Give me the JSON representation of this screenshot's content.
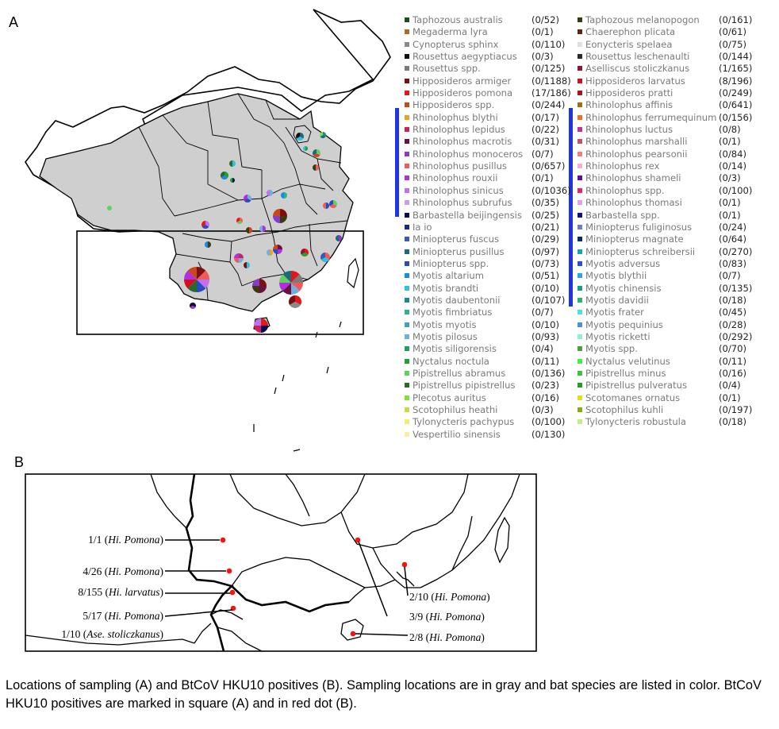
{
  "panel_a_label": "A",
  "panel_b_label": "B",
  "caption": "Locations of sampling (A) and BtCoV HKU10 positives (B). Sampling locations are in gray and bat species are listed in color. BtCoV HKU10 positives are marked in square (A) and in red dot (B).",
  "legend": {
    "left": [
      {
        "name": "Taphozous australis",
        "count": "(0/52)",
        "color": "#1e4d1e"
      },
      {
        "name": "Megaderma lyra",
        "count": "(0/1)",
        "color": "#b06a2a"
      },
      {
        "name": "Cynopterus sphinx",
        "count": "(0/110)",
        "color": "#8a8a8a"
      },
      {
        "name": "Rousettus aegyptiacus",
        "count": "(0/3)",
        "color": "#111111"
      },
      {
        "name": "Rousettus spp.",
        "count": "(0/125)",
        "color": "#7a7a7a"
      },
      {
        "name": "Hipposideros armiger",
        "count": "(0/1188)",
        "color": "#7a1010"
      },
      {
        "name": "Hipposideros pomona",
        "count": "(17/186)",
        "color": "#e01818"
      },
      {
        "name": "Hipposideros spp.",
        "count": "(0/244)",
        "color": "#c8481a"
      },
      {
        "name": "Rhinolophus blythi",
        "count": "(0/17)",
        "color": "#f0a020"
      },
      {
        "name": "Rhinolophus lepidus",
        "count": "(0/22)",
        "color": "#d0205a"
      },
      {
        "name": "Rhinolophus macrotis",
        "count": "(0/31)",
        "color": "#6a1040"
      },
      {
        "name": "Rhinolophus monoceros",
        "count": "(0/7)",
        "color": "#8a3acb"
      },
      {
        "name": "Rhinolophus pusillus",
        "count": "(0/657)",
        "color": "#f05a5a"
      },
      {
        "name": "Rhinolophus rouxii",
        "count": "(0/1)",
        "color": "#b030e0"
      },
      {
        "name": "Rhinolophus sinicus",
        "count": "(0/1036)",
        "color": "#c070f0"
      },
      {
        "name": "Rhinolophus subrufus",
        "count": "(0/35)",
        "color": "#c8a0e0"
      },
      {
        "name": "Barbastella beijingensis",
        "count": "(0/25)",
        "color": "#0a0a5a"
      },
      {
        "name": "Ia io",
        "count": "(0/21)",
        "color": "#1a2a8a"
      },
      {
        "name": "Miniopterus fuscus",
        "count": "(0/29)",
        "color": "#3a5ab0"
      },
      {
        "name": "Miniopterus pusillus",
        "count": "(0/97)",
        "color": "#1a6a7a"
      },
      {
        "name": "Miniopterus spp.",
        "count": "(0/73)",
        "color": "#2a4ac0"
      },
      {
        "name": "Myotis altarium",
        "count": "(0/51)",
        "color": "#1a8ae0"
      },
      {
        "name": "Myotis brandti",
        "count": "(0/10)",
        "color": "#30c0e0"
      },
      {
        "name": "Myotis daubentonii",
        "count": "(0/107)",
        "color": "#1a8a8a"
      },
      {
        "name": "Myotis fimbriatus",
        "count": "(0/7)",
        "color": "#30b090"
      },
      {
        "name": "Myotis myotis",
        "count": "(0/10)",
        "color": "#40a0c0"
      },
      {
        "name": "Myotis pilosus",
        "count": "(0/93)",
        "color": "#70b0e0"
      },
      {
        "name": "Myotis siligorensis",
        "count": "(0/4)",
        "color": "#20a060"
      },
      {
        "name": "Nyctalus noctula",
        "count": "(0/11)",
        "color": "#20a030"
      },
      {
        "name": "Pipistrellus abramus",
        "count": "(0/136)",
        "color": "#60d060"
      },
      {
        "name": "Pipistrellus pipistrellus",
        "count": "(0/23)",
        "color": "#2a6a2a"
      },
      {
        "name": "Plecotus auritus",
        "count": "(0/16)",
        "color": "#80e040"
      },
      {
        "name": "Scotophilus heathi",
        "count": "(0/3)",
        "color": "#c0e040"
      },
      {
        "name": "Tylonycteris pachypus",
        "count": "(0/100)",
        "color": "#f0f070"
      },
      {
        "name": "Vespertilio sinensis",
        "count": "(0/130)",
        "color": "#f8f0a0"
      }
    ],
    "right": [
      {
        "name": "Taphozous melanopogon",
        "count": "(0/161)",
        "color": "#3a3a10"
      },
      {
        "name": "Chaerephon plicata",
        "count": "(0/61)",
        "color": "#5a2a10"
      },
      {
        "name": "Eonycteris spelaea",
        "count": "(0/75)",
        "color": "#e0e0e0"
      },
      {
        "name": "Rousettus leschenaulti",
        "count": "(0/144)",
        "color": "#2a2a2a"
      },
      {
        "name": "Aselliscus stoliczkanus",
        "count": "(1/165)",
        "color": "#9a1030"
      },
      {
        "name": "Hipposideros larvatus",
        "count": "(8/196)",
        "color": "#d01020"
      },
      {
        "name": "Hipposideros pratti",
        "count": "(0/249)",
        "color": "#a01818"
      },
      {
        "name": "Rhinolophus affinis",
        "count": "(0/641)",
        "color": "#a07010"
      },
      {
        "name": "Rhinolophus ferrumequinum",
        "count": "(0/156)",
        "color": "#f07020"
      },
      {
        "name": "Rhinolophus luctus",
        "count": "(0/8)",
        "color": "#c030a0"
      },
      {
        "name": "Rhinolophus marshalli",
        "count": "(0/1)",
        "color": "#c05070"
      },
      {
        "name": "Rhinolophus pearsonii",
        "count": "(0/84)",
        "color": "#f08080"
      },
      {
        "name": "Rhinolophus rex",
        "count": "(0/14)",
        "color": "#f0b0d0"
      },
      {
        "name": "Rhinolophus shameli",
        "count": "(0/3)",
        "color": "#5a10a0"
      },
      {
        "name": "Rhinolophus spp.",
        "count": "(0/100)",
        "color": "#f02060"
      },
      {
        "name": "Rhinolophus thomasi",
        "count": "(0/1)",
        "color": "#e0a0f0"
      },
      {
        "name": "Barbastella spp.",
        "count": "(0/1)",
        "color": "#101080"
      },
      {
        "name": "Miniopterus fuliginosus",
        "count": "(0/24)",
        "color": "#6a80c0"
      },
      {
        "name": "Miniopterus magnate",
        "count": "(0/64)",
        "color": "#0a2a6a"
      },
      {
        "name": "Miniopterus schreibersii",
        "count": "(0/270)",
        "color": "#1aa0c0"
      },
      {
        "name": "Myotis adversus",
        "count": "(0/83)",
        "color": "#2a4ae0"
      },
      {
        "name": "Myotis blythii",
        "count": "(0/7)",
        "color": "#30a0f0"
      },
      {
        "name": "Myotis chinensis",
        "count": "(0/135)",
        "color": "#1a9a8a"
      },
      {
        "name": "Myotis davidii",
        "count": "(0/18)",
        "color": "#30b070"
      },
      {
        "name": "Myotis frater",
        "count": "(0/45)",
        "color": "#50e0e0"
      },
      {
        "name": "Myotis pequinius",
        "count": "(0/28)",
        "color": "#4a90e0"
      },
      {
        "name": "Myotis ricketti",
        "count": "(0/292)",
        "color": "#90f0d0"
      },
      {
        "name": "Myotis spp.",
        "count": "(0/70)",
        "color": "#4aa040"
      },
      {
        "name": "Nyctalus velutinus",
        "count": "(0/11)",
        "color": "#40f040"
      },
      {
        "name": "Pipistrellus minus",
        "count": "(0/16)",
        "color": "#40c040"
      },
      {
        "name": "Pipistrellus pulveratus",
        "count": "(0/4)",
        "color": "#20a020"
      },
      {
        "name": "Scotomanes ornatus",
        "count": "(0/1)",
        "color": "#e0e020"
      },
      {
        "name": "Scotophilus kuhli",
        "count": "(0/197)",
        "color": "#80b010"
      },
      {
        "name": "Tylonycteris robustula",
        "count": "(0/18)",
        "color": "#c0f080"
      }
    ]
  },
  "panel_b": {
    "labels": [
      {
        "count": "1/1",
        "species": "Hi. Pomona"
      },
      {
        "count": "4/26",
        "species": "Hi. Pomona"
      },
      {
        "count": "8/155",
        "species": "Hi. larvatus"
      },
      {
        "count": "5/17",
        "species": "Hi. Pomona"
      },
      {
        "count": "1/10",
        "species": "Ase. stoliczkanus"
      },
      {
        "count": "2/10",
        "species": "Hi. Pomona"
      },
      {
        "count": "3/9",
        "species": "Hi. Pomona"
      },
      {
        "count": "2/8",
        "species": "Hi. Pomona"
      }
    ]
  }
}
